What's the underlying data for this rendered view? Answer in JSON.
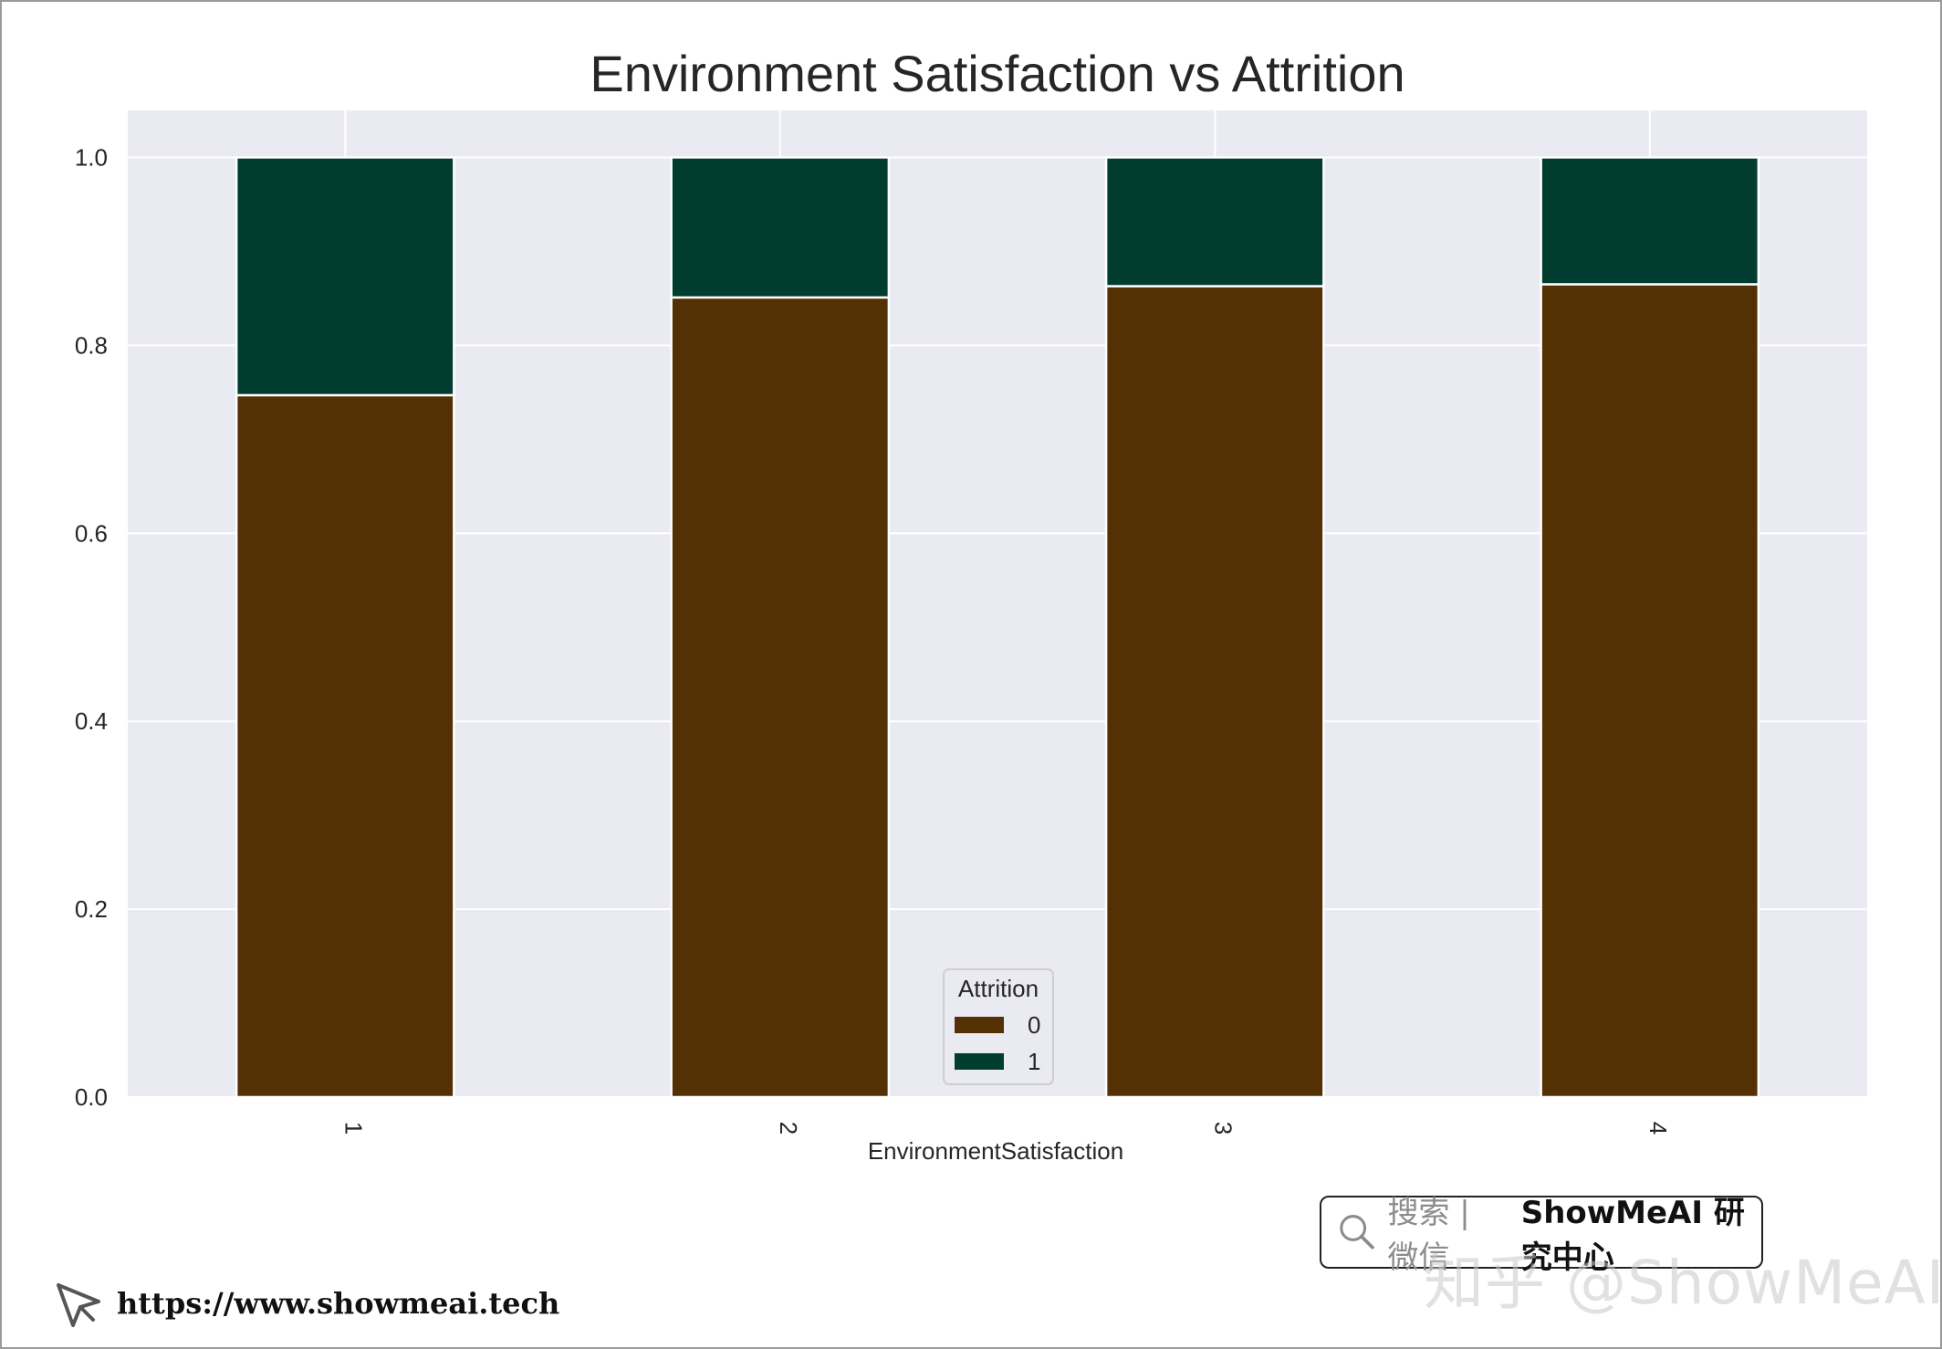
{
  "chart_data": {
    "type": "bar",
    "stacked": true,
    "title": "Environment Satisfaction vs Attrition",
    "xlabel": "EnvironmentSatisfaction",
    "ylabel": "",
    "categories": [
      "1",
      "2",
      "3",
      "4"
    ],
    "series": [
      {
        "name": "0",
        "color": "#543005",
        "values": [
          0.747,
          0.851,
          0.863,
          0.865
        ]
      },
      {
        "name": "1",
        "color": "#003c30",
        "values": [
          0.253,
          0.149,
          0.137,
          0.135
        ]
      }
    ],
    "ylim": [
      0,
      1.05
    ],
    "yticks": [
      "0.0",
      "0.2",
      "0.4",
      "0.6",
      "0.8",
      "1.0"
    ],
    "ytick_values": [
      0,
      0.2,
      0.4,
      0.6,
      0.8,
      1.0
    ],
    "grid": true,
    "background_color": "#eaeaf2",
    "legend": {
      "title": "Attrition",
      "placement": "lower-center"
    }
  },
  "branding": {
    "search_text": "搜索 | 微信",
    "name": "ShowMeAI 研究中心",
    "watermark": "知乎 @ShowMeAI",
    "url": "https://www.showmeai.tech"
  }
}
